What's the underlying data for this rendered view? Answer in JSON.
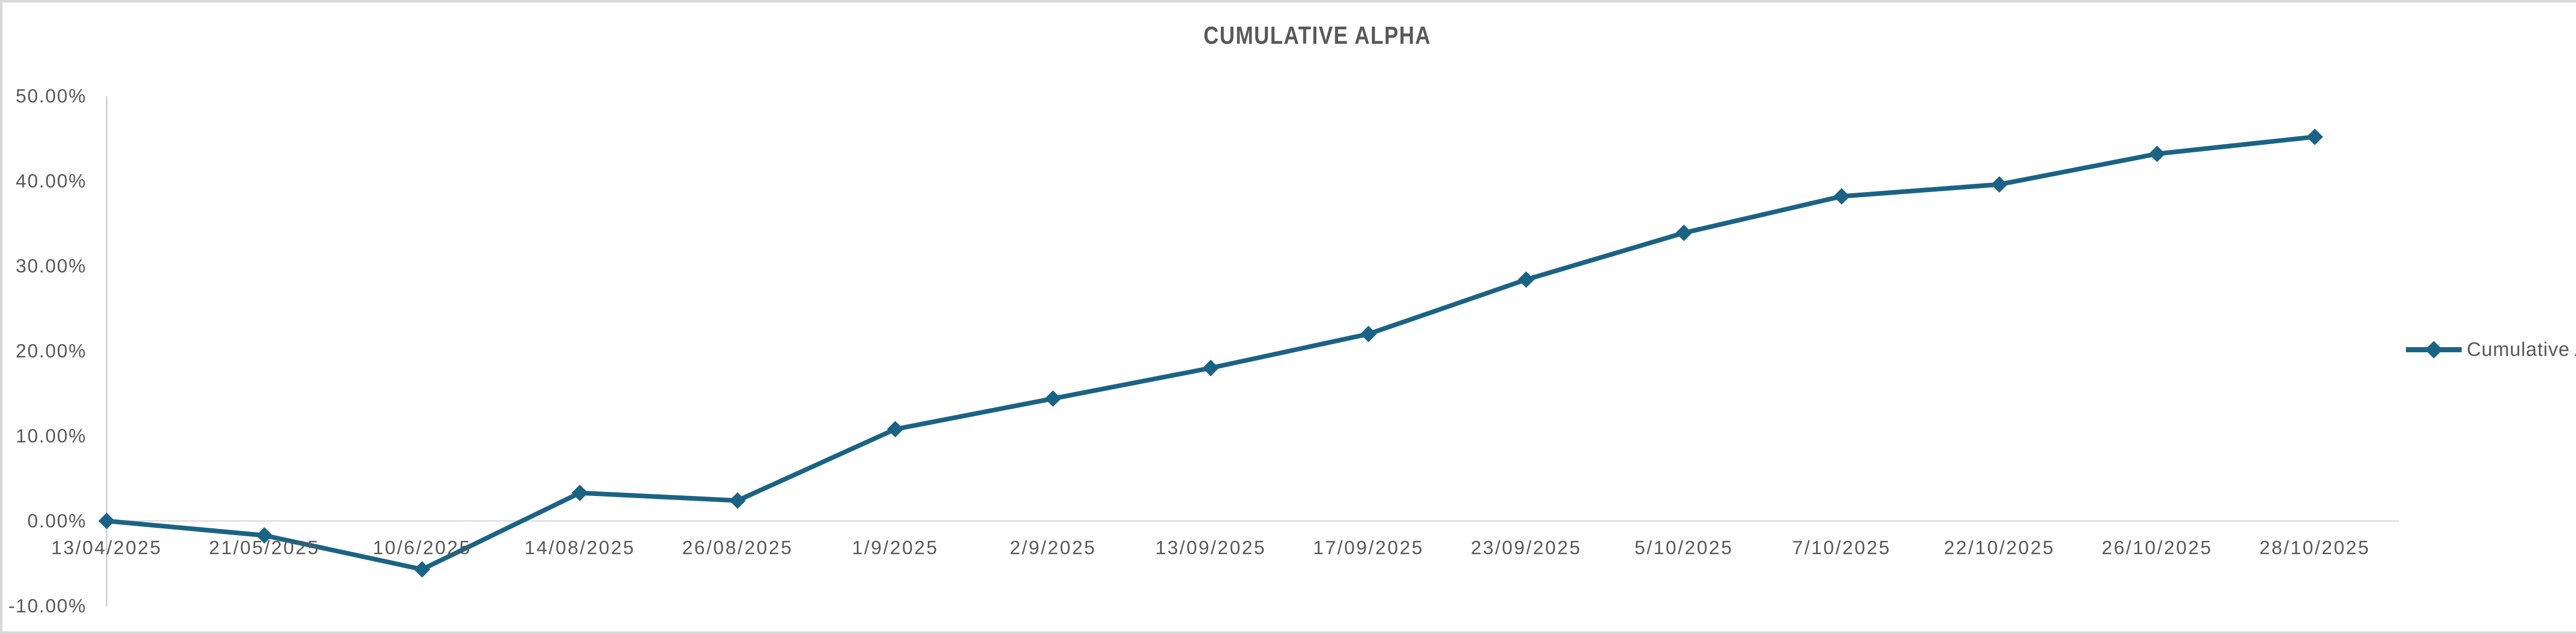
{
  "title": "CUMULATIVE ALPHA",
  "legend": {
    "label": "Cumulative Alpha"
  },
  "colors": {
    "series": "#1B6384",
    "text": "#595959",
    "gridline": "#D9D9D9",
    "axis_line": "#C9C9C9",
    "frame": "#D9D9D9",
    "background": "#FFFFFF"
  },
  "chart_data": {
    "type": "line",
    "title": "CUMULATIVE ALPHA",
    "categories": [
      "13/04/2025",
      "21/05/2025",
      "10/6/2025",
      "14/08/2025",
      "26/08/2025",
      "1/9/2025",
      "2/9/2025",
      "13/09/2025",
      "17/09/2025",
      "23/09/2025",
      "5/10/2025",
      "7/10/2025",
      "22/10/2025",
      "26/10/2025",
      "28/10/2025"
    ],
    "series": [
      {
        "name": "Cumulative Alpha",
        "values": [
          0.0,
          -1.7,
          -5.7,
          3.3,
          2.4,
          10.8,
          14.4,
          18.0,
          22.0,
          28.4,
          33.9,
          38.2,
          39.6,
          43.2,
          45.2
        ]
      }
    ],
    "unit": "percent",
    "y_axis": {
      "tick_labels": [
        "50.00%",
        "40.00%",
        "30.00%",
        "20.00%",
        "10.00%",
        "0.00%",
        "-10.00%"
      ],
      "tick_values": [
        50,
        40,
        30,
        20,
        10,
        0,
        -10
      ],
      "min": -10,
      "max": 50
    },
    "x_axis": {
      "label_format": "date"
    },
    "grid": "zero-line-only",
    "marker": "diamond",
    "legend_position": "right"
  }
}
